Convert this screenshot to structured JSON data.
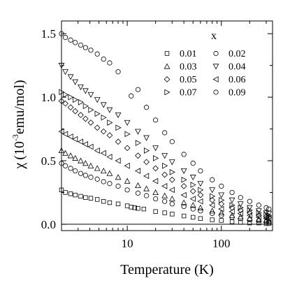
{
  "chart_data": {
    "type": "scatter",
    "title": "",
    "xlabel": "Temperature (K)",
    "ylabel_symbol": "χ",
    "ylabel_unit_prefix": "(10",
    "ylabel_unit_exp": "-3",
    "ylabel_unit_suffix": "emu/mol)",
    "xscale": "log",
    "xlim": [
      2,
      350
    ],
    "ylim": [
      -0.05,
      1.6
    ],
    "xticks": [
      {
        "value": 10,
        "label": "10"
      },
      {
        "value": 100,
        "label": "100"
      }
    ],
    "yticks": [
      {
        "value": 0.0,
        "label": "0.0"
      },
      {
        "value": 0.5,
        "label": "0.5"
      },
      {
        "value": 1.0,
        "label": "1.0"
      },
      {
        "value": 1.5,
        "label": "1.5"
      }
    ],
    "zero_line": true,
    "legend_title": "x",
    "legend_position": "top-right",
    "series": [
      {
        "name": "0.01",
        "marker": "square",
        "x": [
          2.0,
          2.2,
          2.5,
          2.8,
          3.2,
          3.6,
          4.1,
          4.8,
          5.6,
          6.5,
          8,
          10,
          11,
          12,
          13,
          15,
          20,
          25,
          30,
          40,
          50,
          60,
          80,
          100,
          130,
          160,
          200,
          250,
          300,
          320
        ],
        "y": [
          0.27,
          0.25,
          0.24,
          0.23,
          0.22,
          0.21,
          0.205,
          0.195,
          0.18,
          0.17,
          0.16,
          0.145,
          0.135,
          0.13,
          0.125,
          0.12,
          0.1,
          0.09,
          0.08,
          0.065,
          0.055,
          0.045,
          0.035,
          0.03,
          0.02,
          0.015,
          0.01,
          0.01,
          0.005,
          0.005
        ]
      },
      {
        "name": "0.02",
        "marker": "circle",
        "x": [
          2.0,
          2.2,
          2.5,
          2.8,
          3.2,
          3.6,
          4.1,
          4.8,
          5.6,
          6.5,
          8,
          10,
          13,
          16,
          20,
          25,
          30,
          40,
          50,
          60,
          80,
          100,
          130,
          160,
          200,
          250,
          300,
          320
        ],
        "y": [
          0.48,
          0.46,
          0.44,
          0.42,
          0.4,
          0.385,
          0.37,
          0.355,
          0.335,
          0.32,
          0.3,
          0.27,
          0.245,
          0.225,
          0.2,
          0.18,
          0.16,
          0.14,
          0.12,
          0.105,
          0.085,
          0.07,
          0.055,
          0.045,
          0.035,
          0.028,
          0.02,
          0.018
        ]
      },
      {
        "name": "0.03",
        "marker": "triangle-up",
        "x": [
          2.0,
          2.2,
          2.5,
          2.8,
          3.2,
          3.6,
          4.1,
          4.8,
          5.6,
          6.5,
          8,
          10,
          13,
          16,
          20,
          25,
          30,
          40,
          50,
          60,
          80,
          100,
          130,
          160,
          200,
          250,
          300,
          320
        ],
        "y": [
          0.58,
          0.56,
          0.54,
          0.52,
          0.5,
          0.48,
          0.46,
          0.44,
          0.42,
          0.4,
          0.37,
          0.34,
          0.305,
          0.28,
          0.25,
          0.225,
          0.2,
          0.17,
          0.15,
          0.13,
          0.105,
          0.09,
          0.07,
          0.06,
          0.048,
          0.038,
          0.03,
          0.028
        ]
      },
      {
        "name": "0.04",
        "marker": "triangle-down",
        "x": [
          2.0,
          2.2,
          2.5,
          2.8,
          3.2,
          3.6,
          4.1,
          4.8,
          5.6,
          6.5,
          8,
          10,
          13,
          16,
          20,
          25,
          30,
          40,
          50,
          60,
          80,
          100,
          130,
          160,
          200,
          250,
          300,
          320
        ],
        "y": [
          1.25,
          1.2,
          1.16,
          1.12,
          1.08,
          1.05,
          1.02,
          0.98,
          0.94,
          0.9,
          0.86,
          0.8,
          0.73,
          0.68,
          0.6,
          0.54,
          0.49,
          0.42,
          0.37,
          0.32,
          0.27,
          0.23,
          0.19,
          0.16,
          0.13,
          0.105,
          0.09,
          0.085
        ]
      },
      {
        "name": "0.05",
        "marker": "diamond",
        "x": [
          2.0,
          2.2,
          2.5,
          2.8,
          3.2,
          3.6,
          4.1,
          4.8,
          5.6,
          6.5,
          8,
          10,
          13,
          16,
          20,
          25,
          30,
          40,
          50,
          60,
          80,
          100,
          130,
          160,
          200,
          250,
          300,
          320
        ],
        "y": [
          0.97,
          0.95,
          0.92,
          0.89,
          0.86,
          0.83,
          0.8,
          0.76,
          0.73,
          0.7,
          0.65,
          0.6,
          0.54,
          0.49,
          0.44,
          0.39,
          0.35,
          0.3,
          0.26,
          0.23,
          0.19,
          0.16,
          0.13,
          0.11,
          0.09,
          0.07,
          0.06,
          0.055
        ]
      },
      {
        "name": "0.06",
        "marker": "triangle-left",
        "x": [
          2.0,
          2.2,
          2.5,
          2.8,
          3.2,
          3.6,
          4.1,
          4.8,
          5.6,
          6.5,
          8,
          10,
          13,
          16,
          20,
          25,
          30,
          40,
          50,
          60,
          80,
          100,
          130,
          160,
          200,
          250,
          300,
          320
        ],
        "y": [
          0.73,
          0.71,
          0.69,
          0.67,
          0.65,
          0.63,
          0.61,
          0.58,
          0.56,
          0.53,
          0.5,
          0.46,
          0.42,
          0.38,
          0.34,
          0.3,
          0.27,
          0.23,
          0.2,
          0.18,
          0.15,
          0.12,
          0.1,
          0.085,
          0.07,
          0.055,
          0.045,
          0.042
        ]
      },
      {
        "name": "0.07",
        "marker": "triangle-right",
        "x": [
          2.0,
          2.2,
          2.5,
          2.8,
          3.2,
          3.6,
          4.1,
          4.8,
          5.6,
          6.5,
          8,
          10,
          13,
          16,
          20,
          25,
          30,
          40,
          50,
          60,
          80,
          100,
          130,
          160,
          200,
          250,
          300,
          320
        ],
        "y": [
          1.04,
          1.02,
          1.0,
          0.98,
          0.96,
          0.93,
          0.9,
          0.87,
          0.84,
          0.8,
          0.76,
          0.71,
          0.64,
          0.58,
          0.52,
          0.46,
          0.41,
          0.35,
          0.31,
          0.27,
          0.22,
          0.19,
          0.15,
          0.13,
          0.11,
          0.09,
          0.075,
          0.07
        ]
      },
      {
        "name": "0.09",
        "marker": "circle",
        "x": [
          2.0,
          2.2,
          2.5,
          2.8,
          3.2,
          3.6,
          4.1,
          4.8,
          5.6,
          6.5,
          8,
          11,
          13,
          16,
          20,
          25,
          30,
          40,
          50,
          60,
          80,
          100,
          130,
          160,
          200,
          250,
          300,
          320
        ],
        "y": [
          1.5,
          1.47,
          1.45,
          1.43,
          1.41,
          1.39,
          1.37,
          1.34,
          1.3,
          1.27,
          1.2,
          1.01,
          1.06,
          0.92,
          0.82,
          0.72,
          0.65,
          0.55,
          0.48,
          0.42,
          0.35,
          0.3,
          0.25,
          0.21,
          0.18,
          0.15,
          0.13,
          0.12
        ]
      }
    ],
    "legend_layout": [
      [
        "0.01",
        "0.02"
      ],
      [
        "0.03",
        "0.04"
      ],
      [
        "0.05",
        "0.06"
      ],
      [
        "0.07",
        "0.09"
      ]
    ]
  }
}
